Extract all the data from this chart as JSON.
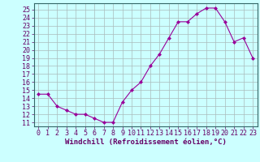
{
  "x": [
    0,
    1,
    2,
    3,
    4,
    5,
    6,
    7,
    8,
    9,
    10,
    11,
    12,
    13,
    14,
    15,
    16,
    17,
    18,
    19,
    20,
    21,
    22,
    23
  ],
  "y": [
    14.5,
    14.5,
    13.0,
    12.5,
    12.0,
    12.0,
    11.5,
    11.0,
    11.0,
    13.5,
    15.0,
    16.0,
    18.0,
    19.5,
    21.5,
    23.5,
    23.5,
    24.5,
    25.2,
    25.2,
    23.5,
    21.0,
    21.5,
    19.0
  ],
  "line_color": "#990099",
  "marker": "D",
  "marker_size": 2,
  "bg_color": "#ccffff",
  "grid_color": "#aabbbb",
  "xlabel": "Windchill (Refroidissement éolien,°C)",
  "xlim": [
    -0.5,
    23.5
  ],
  "ylim": [
    10.5,
    25.8
  ],
  "yticks": [
    11,
    12,
    13,
    14,
    15,
    16,
    17,
    18,
    19,
    20,
    21,
    22,
    23,
    24,
    25
  ],
  "xticks": [
    0,
    1,
    2,
    3,
    4,
    5,
    6,
    7,
    8,
    9,
    10,
    11,
    12,
    13,
    14,
    15,
    16,
    17,
    18,
    19,
    20,
    21,
    22,
    23
  ],
  "label_fontsize": 6.5,
  "tick_fontsize": 6
}
